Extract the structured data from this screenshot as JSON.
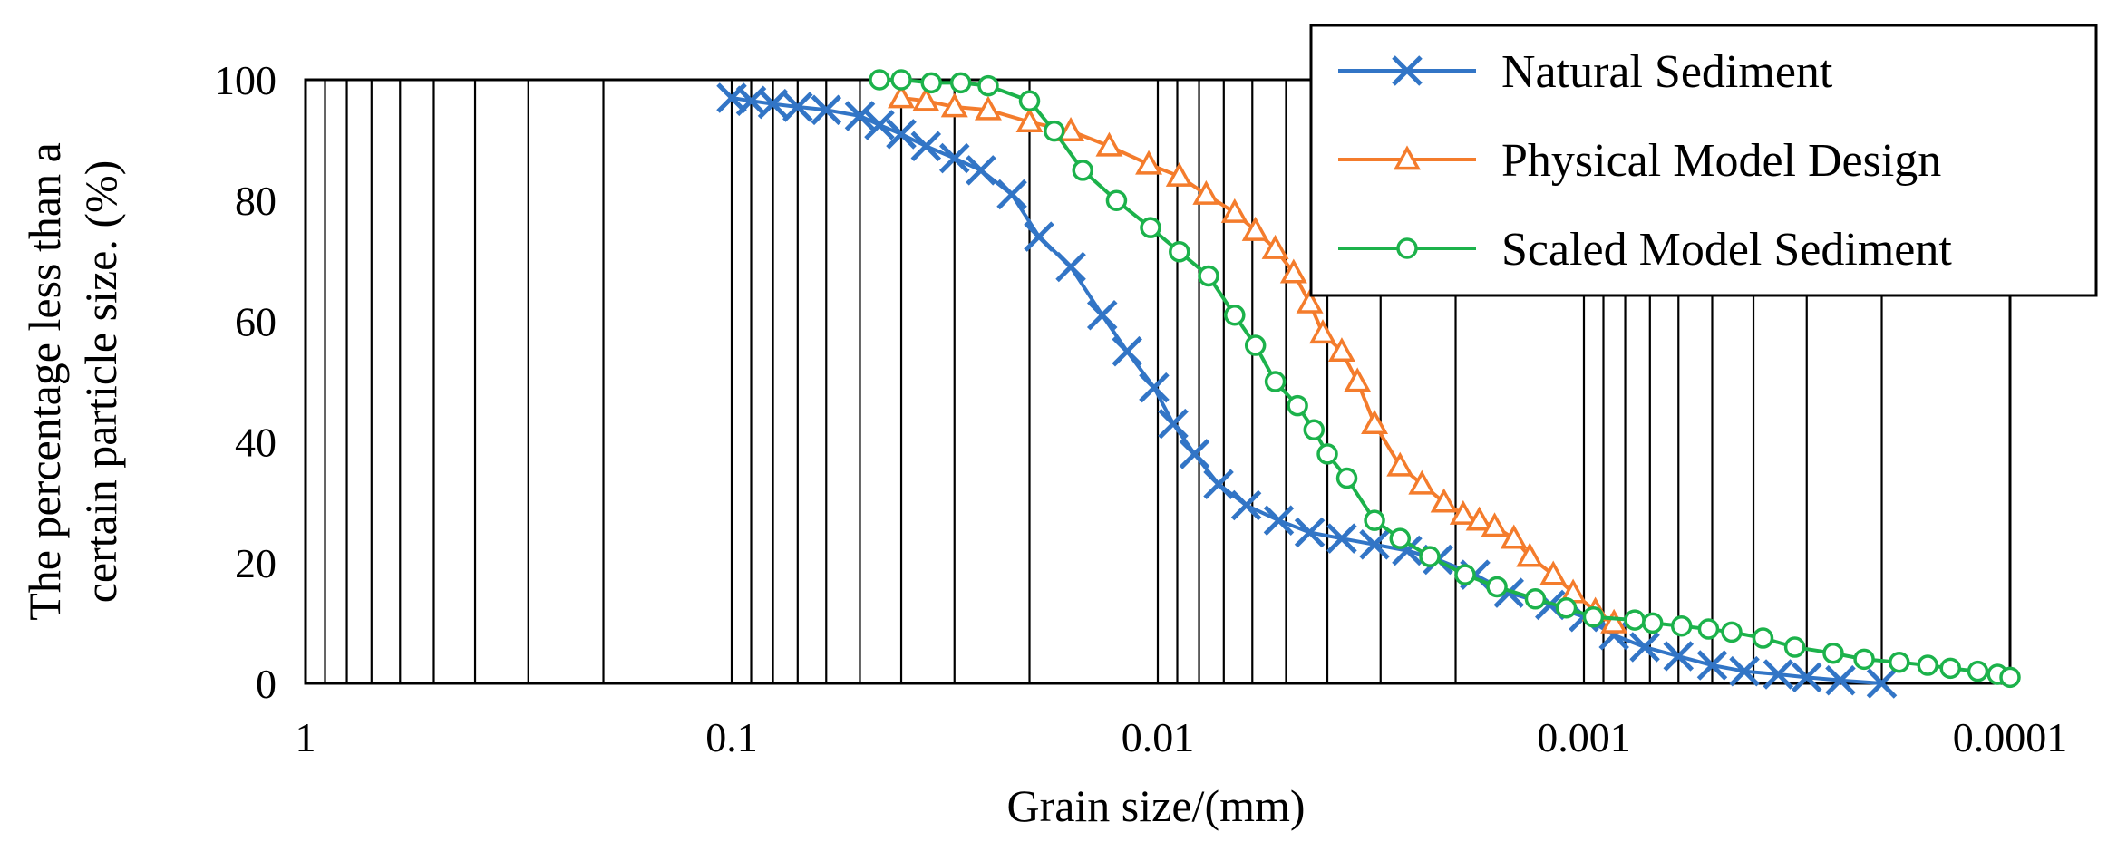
{
  "chart_data": {
    "type": "line",
    "title": "",
    "xlabel": "Grain size/(mm)",
    "ylabel_lines": [
      "The percentage less than a",
      "certain particle size.  (%)"
    ],
    "x_scale": "log",
    "x_reversed": true,
    "xlim": [
      1,
      0.0001
    ],
    "ylim": [
      0,
      100
    ],
    "x_ticks": [
      1,
      0.1,
      0.01,
      0.001,
      0.0001
    ],
    "x_tick_labels": [
      "1",
      "0.1",
      "0.01",
      "0.001",
      "0.0001"
    ],
    "y_ticks": [
      0,
      20,
      40,
      60,
      80,
      100
    ],
    "y_tick_labels": [
      "0",
      "20",
      "40",
      "60",
      "80",
      "100"
    ],
    "grid": "vertical minor log gridlines",
    "legend_position": "top-right",
    "series": [
      {
        "name": "Natural Sediment",
        "color": "#3275c6",
        "marker": "x",
        "x": [
          0.1,
          0.09,
          0.08,
          0.07,
          0.06,
          0.05,
          0.045,
          0.04,
          0.035,
          0.03,
          0.026,
          0.022,
          0.019,
          0.016,
          0.0135,
          0.0118,
          0.0102,
          0.0092,
          0.0082,
          0.0072,
          0.0062,
          0.0052,
          0.0044,
          0.0037,
          0.0031,
          0.0026,
          0.0022,
          0.0018,
          0.0015,
          0.0012,
          0.001,
          0.00085,
          0.00072,
          0.0006,
          0.0005,
          0.00042,
          0.00035,
          0.0003,
          0.00025,
          0.0002
        ],
        "y": [
          97,
          96.5,
          96,
          95.5,
          95,
          94,
          92.5,
          91,
          89,
          87,
          85,
          81,
          74,
          69,
          61,
          55,
          49,
          43,
          38,
          33,
          29.5,
          27,
          25,
          24,
          23,
          22,
          20.5,
          18,
          15,
          13,
          11,
          8,
          6,
          4.5,
          3,
          2,
          1.5,
          1,
          0.5,
          0
        ]
      },
      {
        "name": "Physical Model Design",
        "color": "#f47c2c",
        "marker": "triangle",
        "x": [
          0.04,
          0.035,
          0.03,
          0.025,
          0.02,
          0.016,
          0.013,
          0.0105,
          0.0089,
          0.0077,
          0.0066,
          0.0059,
          0.0053,
          0.0048,
          0.0044,
          0.0041,
          0.0037,
          0.0034,
          0.0031,
          0.0027,
          0.0024,
          0.00213,
          0.00192,
          0.00176,
          0.00162,
          0.00146,
          0.00134,
          0.00118,
          0.00106,
          0.00094,
          0.00085
        ],
        "y": [
          97,
          96.5,
          95.5,
          95,
          93,
          91.5,
          89,
          86,
          84,
          81,
          78,
          75,
          72,
          68,
          63,
          58,
          55,
          50,
          43,
          36,
          33,
          30,
          28,
          27,
          26,
          24,
          21,
          18,
          15,
          12,
          10
        ]
      },
      {
        "name": "Scaled Model Sediment",
        "color": "#1cb24b",
        "marker": "circle",
        "x": [
          0.045,
          0.04,
          0.034,
          0.029,
          0.025,
          0.02,
          0.0175,
          0.015,
          0.0125,
          0.0104,
          0.0089,
          0.0076,
          0.0066,
          0.0059,
          0.0053,
          0.0047,
          0.0043,
          0.004,
          0.0036,
          0.0031,
          0.0027,
          0.0023,
          0.0019,
          0.0016,
          0.0013,
          0.0011,
          0.00095,
          0.00076,
          0.00069,
          0.00059,
          0.00051,
          0.00045,
          0.00038,
          0.00032,
          0.00026,
          0.00022,
          0.000182,
          0.000156,
          0.000138,
          0.000119,
          0.000107,
          0.0001
        ],
        "y": [
          100,
          100,
          99.5,
          99.5,
          99,
          96.5,
          91.5,
          85,
          80,
          75.5,
          71.5,
          67.5,
          61,
          56,
          50,
          46,
          42,
          38,
          34,
          27,
          24,
          21,
          18,
          16,
          14,
          12.5,
          11,
          10.5,
          10,
          9.5,
          9,
          8.5,
          7.5,
          6,
          5,
          4,
          3.5,
          3,
          2.5,
          2,
          1.5,
          1
        ]
      }
    ]
  }
}
